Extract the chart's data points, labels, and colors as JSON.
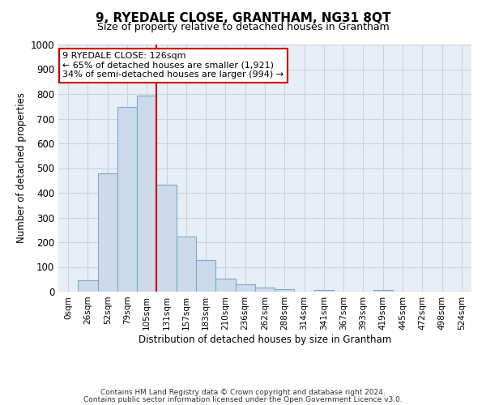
{
  "title": "9, RYEDALE CLOSE, GRANTHAM, NG31 8QT",
  "subtitle": "Size of property relative to detached houses in Grantham",
  "xlabel": "Distribution of detached houses by size in Grantham",
  "ylabel": "Number of detached properties",
  "bar_labels": [
    "0sqm",
    "26sqm",
    "52sqm",
    "79sqm",
    "105sqm",
    "131sqm",
    "157sqm",
    "183sqm",
    "210sqm",
    "236sqm",
    "262sqm",
    "288sqm",
    "314sqm",
    "341sqm",
    "367sqm",
    "393sqm",
    "419sqm",
    "445sqm",
    "472sqm",
    "498sqm",
    "524sqm"
  ],
  "bar_values": [
    0,
    45,
    480,
    748,
    793,
    432,
    222,
    128,
    52,
    28,
    15,
    10,
    0,
    8,
    0,
    0,
    8,
    0,
    0,
    0,
    0
  ],
  "bar_color": "#ccdaeb",
  "bar_edge_color": "#7aaace",
  "fig_bg_color": "#ffffff",
  "axes_bg_color": "#e8eef5",
  "grid_color": "#c8d4e0",
  "vline_color": "#cc0000",
  "vline_x_index": 5,
  "annotation_text": "9 RYEDALE CLOSE: 126sqm\n← 65% of detached houses are smaller (1,921)\n34% of semi-detached houses are larger (994) →",
  "annotation_box_facecolor": "#ffffff",
  "annotation_box_edgecolor": "#cc0000",
  "ylim": [
    0,
    1000
  ],
  "yticks": [
    0,
    100,
    200,
    300,
    400,
    500,
    600,
    700,
    800,
    900,
    1000
  ],
  "footnote1": "Contains HM Land Registry data © Crown copyright and database right 2024.",
  "footnote2": "Contains public sector information licensed under the Open Government Licence v3.0."
}
